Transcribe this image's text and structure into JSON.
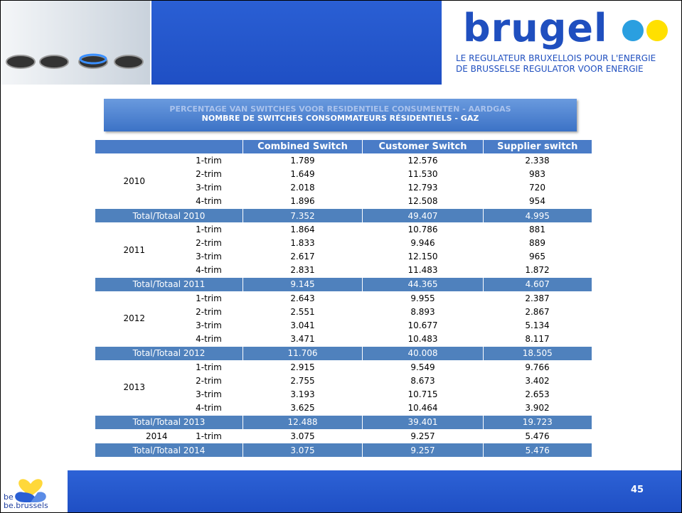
{
  "logo": {
    "name": "brugel",
    "tagline": [
      "LE REGULATEUR BRUXELLOIS POUR L'ENERGIE",
      "DE BRUSSELSE REGULATOR VOOR ENERGIE"
    ]
  },
  "title": {
    "lines": [
      "PERCENTAGE VAN SWITCHES VOOR RESIDENTIELE CONSUMENTEN - AARDGAS",
      "NOMBRE DE SWITCHES CONSOMMATEURS RÉSIDENTIELS - GAZ"
    ]
  },
  "table": {
    "columns": [
      "Combined Switch",
      "Customer Switch",
      "Supplier switch"
    ],
    "years": [
      {
        "year": "2010",
        "rows": [
          {
            "trim": "1-trim",
            "values": [
              "1.789",
              "12.576",
              "2.338"
            ]
          },
          {
            "trim": "2-trim",
            "values": [
              "1.649",
              "11.530",
              "983"
            ]
          },
          {
            "trim": "3-trim",
            "values": [
              "2.018",
              "12.793",
              "720"
            ]
          },
          {
            "trim": "4-trim",
            "values": [
              "1.896",
              "12.508",
              "954"
            ]
          }
        ],
        "total": {
          "label": "Total/Totaal 2010",
          "values": [
            "7.352",
            "49.407",
            "4.995"
          ]
        }
      },
      {
        "year": "2011",
        "rows": [
          {
            "trim": "1-trim",
            "values": [
              "1.864",
              "10.786",
              "881"
            ]
          },
          {
            "trim": "2-trim",
            "values": [
              "1.833",
              "9.946",
              "889"
            ]
          },
          {
            "trim": "3-trim",
            "values": [
              "2.617",
              "12.150",
              "965"
            ]
          },
          {
            "trim": "4-trim",
            "values": [
              "2.831",
              "11.483",
              "1.872"
            ]
          }
        ],
        "total": {
          "label": "Total/Totaal 2011",
          "values": [
            "9.145",
            "44.365",
            "4.607"
          ]
        }
      },
      {
        "year": "2012",
        "rows": [
          {
            "trim": "1-trim",
            "values": [
              "2.643",
              "9.955",
              "2.387"
            ]
          },
          {
            "trim": "2-trim",
            "values": [
              "2.551",
              "8.893",
              "2.867"
            ]
          },
          {
            "trim": "3-trim",
            "values": [
              "3.041",
              "10.677",
              "5.134"
            ]
          },
          {
            "trim": "4-trim",
            "values": [
              "3.471",
              "10.483",
              "8.117"
            ]
          }
        ],
        "total": {
          "label": "Total/Totaal 2012",
          "values": [
            "11.706",
            "40.008",
            "18.505"
          ]
        }
      },
      {
        "year": "2013",
        "rows": [
          {
            "trim": "1-trim",
            "values": [
              "2.915",
              "9.549",
              "9.766"
            ]
          },
          {
            "trim": "2-trim",
            "values": [
              "2.755",
              "8.673",
              "3.402"
            ]
          },
          {
            "trim": "3-trim",
            "values": [
              "3.193",
              "10.715",
              "2.653"
            ]
          },
          {
            "trim": "4-trim",
            "values": [
              "3.625",
              "10.464",
              "3.902"
            ]
          }
        ],
        "total": {
          "label": "Total/Totaal 2013",
          "values": [
            "12.488",
            "39.401",
            "19.723"
          ]
        }
      },
      {
        "year": "2014",
        "rows": [
          {
            "trim": "1-trim",
            "values": [
              "3.075",
              "9.257",
              "5.476"
            ]
          }
        ],
        "total": {
          "label": "Total/Totaal 2014",
          "values": [
            "3.075",
            "9.257",
            "5.476"
          ]
        }
      }
    ]
  },
  "footer": {
    "page": "45",
    "logo_text": [
      "be",
      "be.brussels"
    ]
  }
}
